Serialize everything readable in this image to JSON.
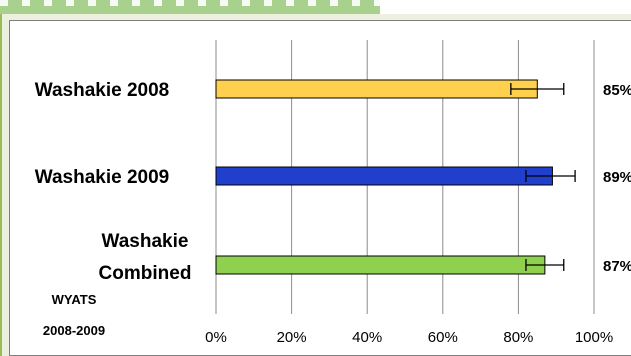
{
  "chart_data": {
    "type": "bar",
    "orientation": "horizontal",
    "categories": [
      "Washakie 2008",
      "Washakie 2009",
      "Washakie Combined"
    ],
    "category_lines": [
      [
        "Washakie 2008"
      ],
      [
        "Washakie 2009"
      ],
      [
        "Washakie",
        "Combined"
      ]
    ],
    "values": [
      85,
      89,
      87
    ],
    "value_labels": [
      "85%",
      "89%",
      "87%"
    ],
    "error_low": [
      7,
      7,
      5
    ],
    "error_high": [
      7,
      6,
      5
    ],
    "colors": [
      "#ffd04d",
      "#1f3fcc",
      "#8fd14f"
    ],
    "xlim": [
      0,
      100
    ],
    "x_ticks": [
      0,
      20,
      40,
      60,
      80,
      100
    ],
    "x_tick_labels": [
      "0%",
      "20%",
      "40%",
      "60%",
      "80%",
      "100%"
    ],
    "grid": true,
    "footnote": [
      "WYATS",
      "2008-2009"
    ]
  }
}
